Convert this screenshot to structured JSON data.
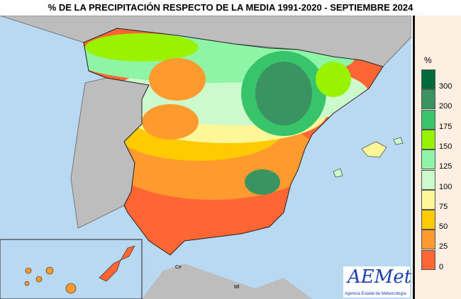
{
  "title": "% DE LA PRECIPITACIÓN RESPECTO DE LA MEDIA 1991-2020 - SEPTIEMBRE 2024",
  "legend": {
    "unit": "%",
    "classes": [
      {
        "label": "300",
        "color": "#00693a"
      },
      {
        "label": "200",
        "color": "#3a9461"
      },
      {
        "label": "175",
        "color": "#38c46a"
      },
      {
        "label": "150",
        "color": "#99f200"
      },
      {
        "label": "125",
        "color": "#8ff5a6"
      },
      {
        "label": "100",
        "color": "#ccfacc"
      },
      {
        "label": "75",
        "color": "#fff797"
      },
      {
        "label": "50",
        "color": "#ffcb00"
      },
      {
        "label": "25",
        "color": "#ff9a2e"
      },
      {
        "label": "0",
        "color": "#ff6633"
      }
    ]
  },
  "map_labels": {
    "ceuta": "Ce",
    "melilla": "Ml"
  },
  "logo": {
    "name": "AEMet",
    "subtitle": "Agencia Estatal de Meteorología"
  },
  "colors": {
    "sea": "#b9d9f2",
    "land_outside": "#bdbdbd"
  }
}
